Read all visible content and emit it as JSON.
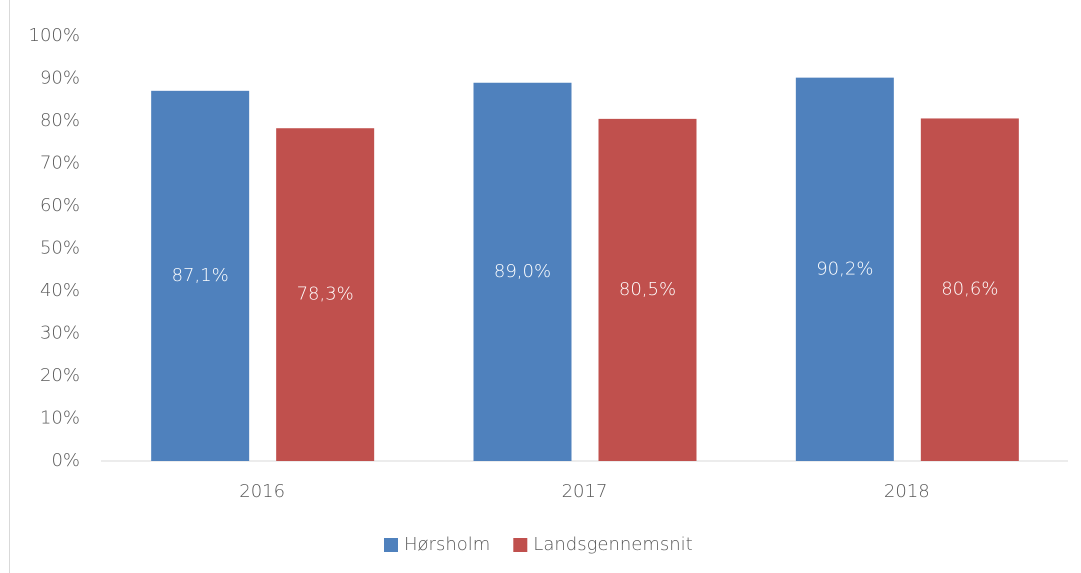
{
  "chart_data": {
    "type": "bar",
    "categories": [
      "2016",
      "2017",
      "2018"
    ],
    "series": [
      {
        "name": "Hørsholm",
        "color": "#4f81bd",
        "values": [
          87.1,
          89.0,
          90.2
        ],
        "value_labels": [
          "87,1%",
          "89,0%",
          "90,2%"
        ]
      },
      {
        "name": "Landsgennemsnit",
        "color": "#c0504d",
        "values": [
          78.3,
          80.5,
          80.6
        ],
        "value_labels": [
          "78,3%",
          "80,5%",
          "80,6%"
        ]
      }
    ],
    "ylim": [
      0,
      100
    ],
    "yticks": [
      {
        "value": 0,
        "label": "0%"
      },
      {
        "value": 10,
        "label": "10%"
      },
      {
        "value": 20,
        "label": "20%"
      },
      {
        "value": 30,
        "label": "30%"
      },
      {
        "value": 40,
        "label": "40%"
      },
      {
        "value": 50,
        "label": "50%"
      },
      {
        "value": 60,
        "label": "60%"
      },
      {
        "value": 70,
        "label": "70%"
      },
      {
        "value": 80,
        "label": "80%"
      },
      {
        "value": 90,
        "label": "90%"
      },
      {
        "value": 100,
        "label": "100%"
      }
    ],
    "grid": false,
    "legend": "bottom"
  }
}
